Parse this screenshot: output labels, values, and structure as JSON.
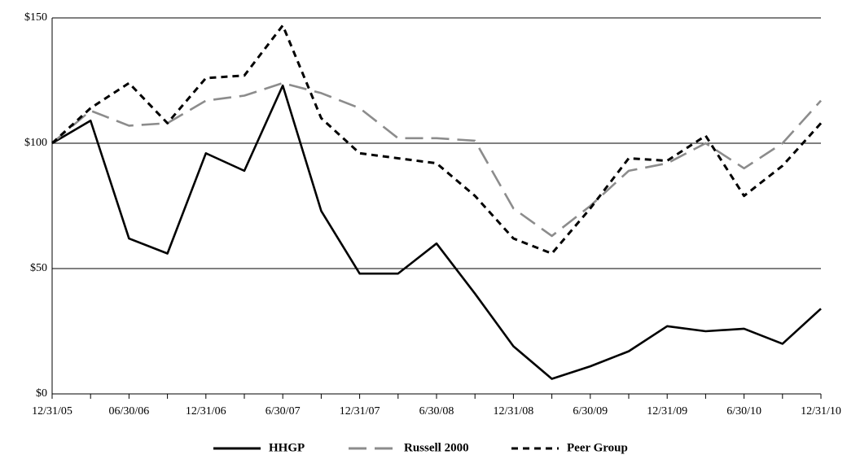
{
  "chart_data": {
    "type": "line",
    "categories": [
      "12/31/05",
      null,
      "06/30/06",
      null,
      "12/31/06",
      null,
      "6/30/07",
      null,
      "12/31/07",
      null,
      "6/30/08",
      null,
      "12/31/08",
      null,
      "6/30/09",
      null,
      "12/31/09",
      null,
      "6/30/10",
      null,
      "12/31/10"
    ],
    "series": [
      {
        "name": "HHGP",
        "color": "#000000",
        "values": [
          100,
          109,
          62,
          56,
          96,
          89,
          123,
          73,
          48,
          48,
          60,
          40,
          19,
          6,
          11,
          17,
          27,
          25,
          26,
          20,
          34
        ]
      },
      {
        "name": "Russell 2000",
        "color": "#8c8c8c",
        "values": [
          100,
          113,
          107,
          108,
          117,
          119,
          124,
          120,
          114,
          102,
          102,
          101,
          74,
          63,
          75,
          89,
          92,
          100,
          90,
          100,
          117
        ]
      },
      {
        "name": "Peer Group",
        "color": "#000000",
        "values": [
          100,
          114,
          124,
          108,
          126,
          127,
          147,
          110,
          96,
          94,
          92,
          79,
          62,
          56,
          74,
          94,
          93,
          103,
          79,
          91,
          108
        ]
      }
    ],
    "ylim": [
      0,
      150
    ],
    "yticks": [
      {
        "value": 0,
        "label": "$0"
      },
      {
        "value": 50,
        "label": "$50"
      },
      {
        "value": 100,
        "label": "$100"
      },
      {
        "value": 150,
        "label": "$150"
      }
    ],
    "grid": true,
    "legend": "bottom"
  }
}
